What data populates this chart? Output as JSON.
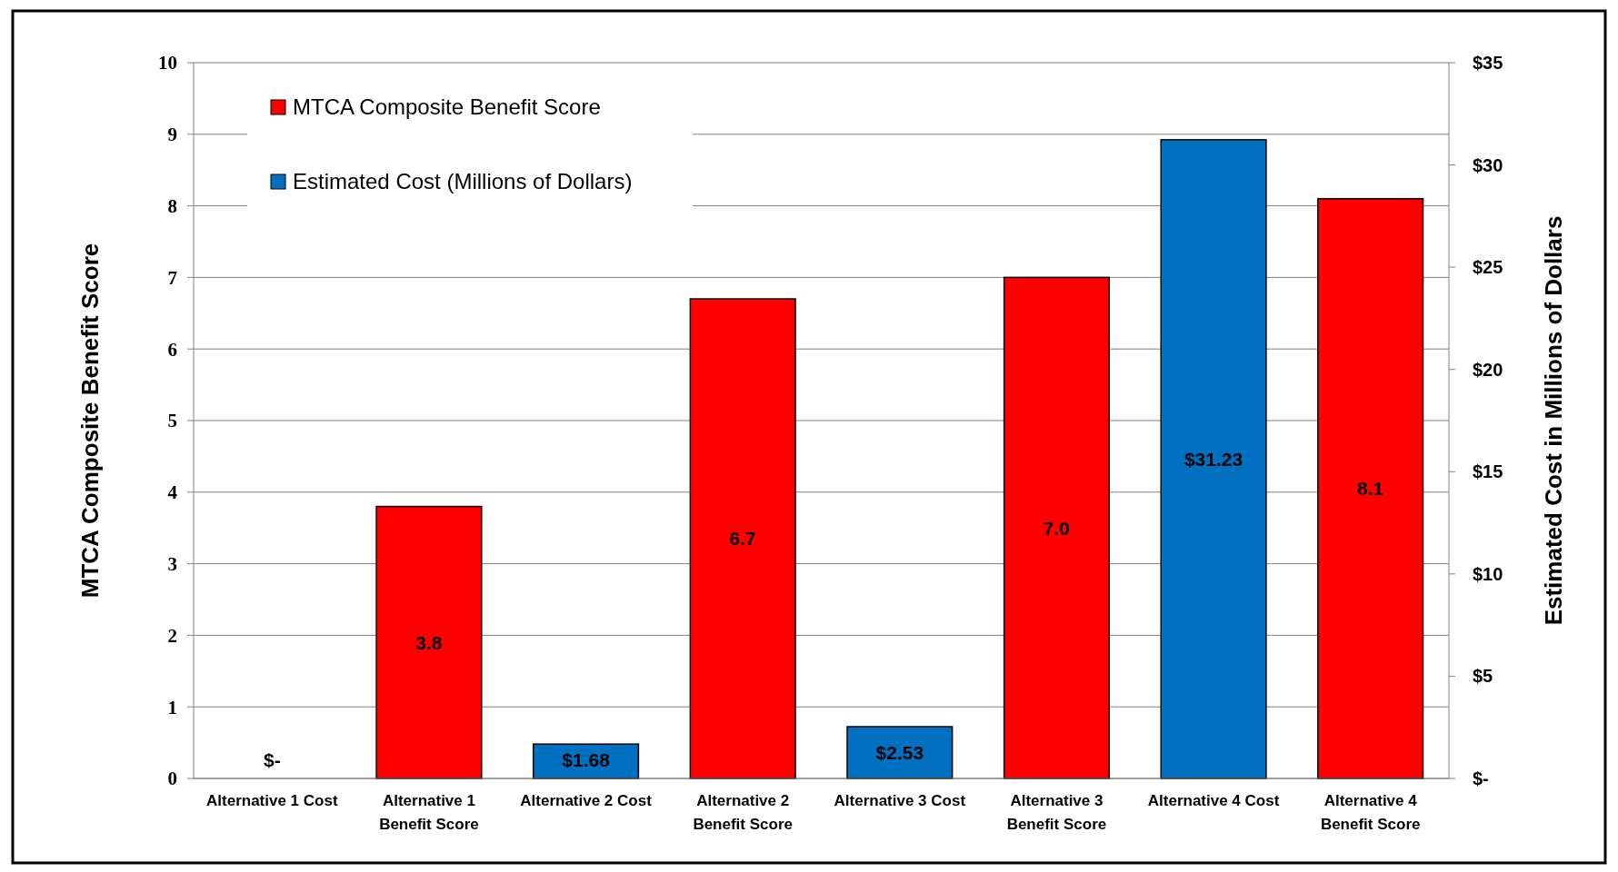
{
  "chart_data": {
    "type": "bar",
    "ylabel": "MTCA Composite Benefit Score",
    "y2label": "Estimated Cost in Millions of Dollars",
    "categories": [
      "Alternative 1 Cost",
      "Alternative 1 Benefit Score",
      "Alternative 2 Cost",
      "Alternative 2 Benefit Score",
      "Alternative 3 Cost",
      "Alternative 3 Benefit Score",
      "Alternative 4 Cost",
      "Alternative 4 Benefit Score"
    ],
    "series": [
      {
        "name": "MTCA Composite Benefit Score",
        "color": "#ff0000",
        "values": [
          null,
          3.8,
          null,
          6.7,
          null,
          7.0,
          null,
          8.1
        ],
        "value_labels": [
          null,
          "3.8",
          null,
          "6.7",
          null,
          "7.0",
          null,
          "8.1"
        ]
      },
      {
        "name": "Estimated Cost (Millions of Dollars)",
        "color": "#0070c0",
        "axis": "y2",
        "values": [
          0,
          null,
          1.68,
          null,
          2.53,
          null,
          31.23,
          null
        ],
        "value_labels": [
          "$-",
          null,
          "$1.68",
          null,
          "$2.53",
          null,
          "$31.23",
          null
        ]
      }
    ],
    "ylim": [
      0,
      10
    ],
    "yticks": [
      0,
      1,
      2,
      3,
      4,
      5,
      6,
      7,
      8,
      9,
      10
    ],
    "y2lim": [
      0,
      35
    ],
    "y2ticks": [
      {
        "value": 0,
        "label": "$-"
      },
      {
        "value": 5,
        "label": "$5"
      },
      {
        "value": 10,
        "label": "$10"
      },
      {
        "value": 15,
        "label": "$15"
      },
      {
        "value": 20,
        "label": "$20"
      },
      {
        "value": 25,
        "label": "$25"
      },
      {
        "value": 30,
        "label": "$30"
      },
      {
        "value": 35,
        "label": "$35"
      }
    ],
    "grid": "y",
    "legend": "top left"
  }
}
